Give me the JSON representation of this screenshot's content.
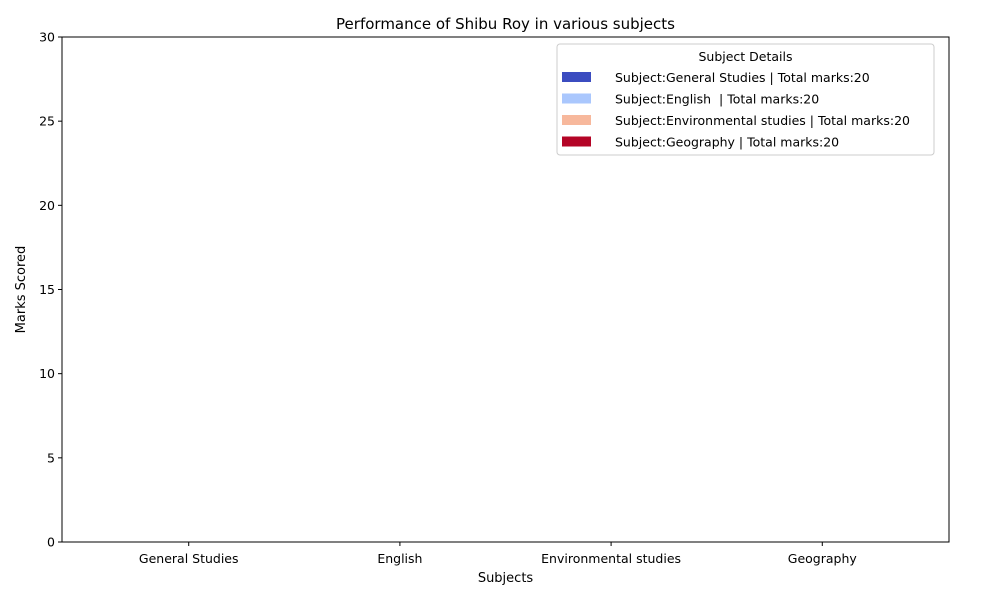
{
  "chart_data": {
    "type": "bar",
    "title": "Performance of Shibu Roy in various subjects",
    "xlabel": "Subjects",
    "ylabel": "Marks Scored",
    "categories": [
      "General Studies",
      "English",
      "Environmental studies",
      "Geography"
    ],
    "values": [
      0,
      0,
      0,
      0
    ],
    "ylim": [
      0,
      30
    ],
    "yticks": [
      "0",
      "5",
      "10",
      "15",
      "20",
      "25",
      "30"
    ],
    "grid": false,
    "legend": {
      "title": "Subject Details",
      "placement": "top-right",
      "entries": [
        {
          "label": "Subject:General Studies | Total marks:20",
          "color": "#3b4cc0"
        },
        {
          "label": "Subject:English  | Total marks:20",
          "color": "#aac7fd"
        },
        {
          "label": "Subject:Environmental studies | Total marks:20",
          "color": "#f7b89c"
        },
        {
          "label": "Subject:Geography | Total marks:20",
          "color": "#b40426"
        }
      ]
    }
  }
}
